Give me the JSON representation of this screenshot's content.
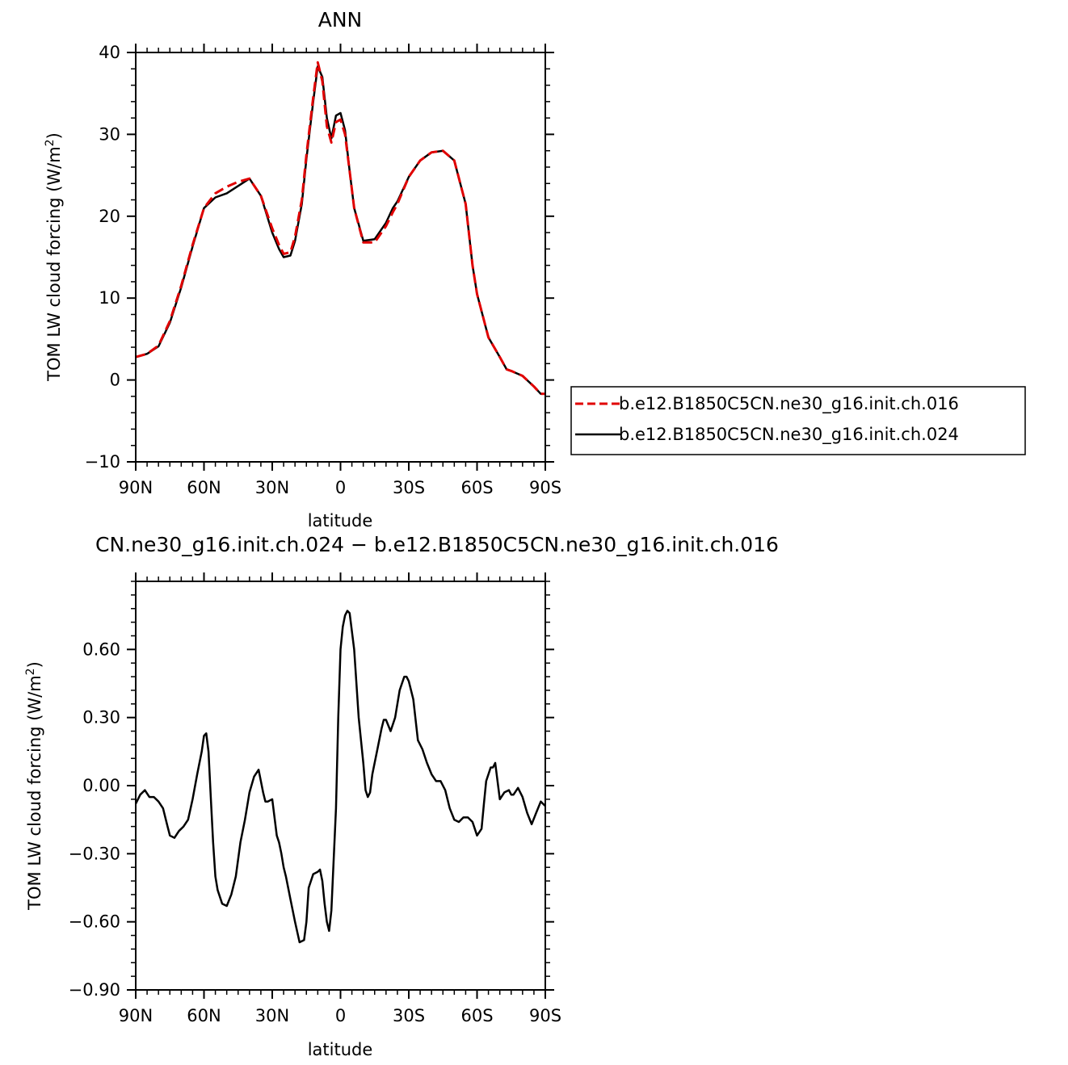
{
  "chart_data": [
    {
      "type": "line",
      "title": "ANN",
      "xlabel": "latitude",
      "ylabel": "TOM LW cloud forcing (W/m",
      "ylabel_sup": "2",
      "ylabel_close": ")",
      "xlim": [
        90,
        -90
      ],
      "ylim": [
        -10,
        40
      ],
      "xticks": [
        {
          "value": 90,
          "label": "90N"
        },
        {
          "value": 60,
          "label": "60N"
        },
        {
          "value": 30,
          "label": "30N"
        },
        {
          "value": 0,
          "label": "0"
        },
        {
          "value": -30,
          "label": "30S"
        },
        {
          "value": -60,
          "label": "60S"
        },
        {
          "value": -90,
          "label": "90S"
        }
      ],
      "yticks": [
        {
          "value": -10,
          "label": "−10"
        },
        {
          "value": 0,
          "label": "0"
        },
        {
          "value": 10,
          "label": "10"
        },
        {
          "value": 20,
          "label": "20"
        },
        {
          "value": 30,
          "label": "30"
        },
        {
          "value": 40,
          "label": "40"
        }
      ],
      "legend": {
        "placement": "right",
        "entries": [
          {
            "label": "b.e12.B1850C5CN.ne30_g16.init.ch.016",
            "color": "#e00000",
            "style": "dashed"
          },
          {
            "label": "b.e12.B1850C5CN.ne30_g16.init.ch.024",
            "color": "#000000",
            "style": "solid"
          }
        ]
      },
      "series": [
        {
          "name": "b.e12.B1850C5CN.ne30_g16.init.ch.016",
          "color": "#e00000",
          "style": "dashed",
          "x": [
            90,
            85,
            80,
            75,
            70,
            65,
            60,
            55,
            50,
            45,
            40,
            35,
            30,
            27,
            25,
            22,
            20,
            17,
            15,
            12,
            10,
            8,
            6,
            4,
            2,
            0,
            -2,
            -4,
            -6,
            -10,
            -15,
            -20,
            -23,
            -25,
            -30,
            -35,
            -40,
            -45,
            -50,
            -55,
            -58,
            -60,
            -65,
            -70,
            -73,
            -75,
            -80,
            -85,
            -88,
            -90
          ],
          "y": [
            2.8,
            3.2,
            4.2,
            7.2,
            11.5,
            16.5,
            21.0,
            22.8,
            23.6,
            24.2,
            24.6,
            22.5,
            18.5,
            16.5,
            15.4,
            15.6,
            17.5,
            22.0,
            27.5,
            34.5,
            38.8,
            36.5,
            31.0,
            29.0,
            31.5,
            31.8,
            30.0,
            25.5,
            21.0,
            16.8,
            16.8,
            18.8,
            20.5,
            21.5,
            24.8,
            26.8,
            27.8,
            28.0,
            26.8,
            21.5,
            14.0,
            10.5,
            5.2,
            2.8,
            1.3,
            1.1,
            0.5,
            -0.8,
            -1.7,
            -1.7
          ]
        },
        {
          "name": "b.e12.B1850C5CN.ne30_g16.init.ch.024",
          "color": "#000000",
          "style": "solid",
          "x": [
            90,
            85,
            80,
            75,
            70,
            65,
            60,
            55,
            50,
            45,
            40,
            35,
            30,
            27,
            25,
            22,
            20,
            17,
            15,
            12,
            10,
            8,
            6,
            4,
            2,
            0,
            -2,
            -4,
            -6,
            -10,
            -15,
            -20,
            -23,
            -25,
            -30,
            -35,
            -40,
            -45,
            -50,
            -55,
            -58,
            -60,
            -65,
            -70,
            -73,
            -75,
            -80,
            -85,
            -88,
            -90
          ],
          "y": [
            2.8,
            3.2,
            4.1,
            7.0,
            11.3,
            16.3,
            21.0,
            22.3,
            22.8,
            23.7,
            24.6,
            22.5,
            18.0,
            16.0,
            15.0,
            15.2,
            17.0,
            21.5,
            27.0,
            34.0,
            38.3,
            37.0,
            32.0,
            29.5,
            32.3,
            32.6,
            30.5,
            25.5,
            21.0,
            17.0,
            17.2,
            19.2,
            21.0,
            21.8,
            24.8,
            26.8,
            27.8,
            28.0,
            26.8,
            21.5,
            14.0,
            10.5,
            5.2,
            2.8,
            1.3,
            1.1,
            0.5,
            -0.8,
            -1.7,
            -1.7
          ]
        }
      ]
    },
    {
      "type": "line",
      "title": "CN.ne30_g16.init.ch.024 − b.e12.B1850C5CN.ne30_g16.init.ch.016",
      "xlabel": "latitude",
      "ylabel": "TOM LW cloud forcing (W/m",
      "ylabel_sup": "2",
      "ylabel_close": ")",
      "xlim": [
        90,
        -90
      ],
      "ylim": [
        -0.9,
        0.9
      ],
      "xticks": [
        {
          "value": 90,
          "label": "90N"
        },
        {
          "value": 60,
          "label": "60N"
        },
        {
          "value": 30,
          "label": "30N"
        },
        {
          "value": 0,
          "label": "0"
        },
        {
          "value": -30,
          "label": "30S"
        },
        {
          "value": -60,
          "label": "60S"
        },
        {
          "value": -90,
          "label": "90S"
        }
      ],
      "yticks": [
        {
          "value": -0.9,
          "label": "−0.90"
        },
        {
          "value": -0.6,
          "label": "−0.60"
        },
        {
          "value": -0.3,
          "label": "−0.30"
        },
        {
          "value": 0,
          "label": "0.00"
        },
        {
          "value": 0.3,
          "label": "0.30"
        },
        {
          "value": 0.6,
          "label": "0.60"
        }
      ],
      "series": [
        {
          "color": "#000000",
          "style": "solid",
          "x": [
            90,
            88,
            86,
            84,
            82,
            80,
            78,
            76,
            75,
            73,
            71,
            69,
            67,
            65,
            63,
            61,
            60,
            59,
            58,
            57,
            56,
            55,
            54,
            52,
            50,
            48,
            46,
            44,
            42,
            40,
            38,
            36,
            34,
            33,
            32,
            30,
            28,
            27,
            26,
            25,
            24,
            22,
            20,
            18,
            16,
            15,
            14,
            12,
            10,
            9,
            8,
            7,
            6,
            5,
            4,
            2,
            1,
            0,
            -1,
            -2,
            -3,
            -4,
            -6,
            -8,
            -10,
            -11,
            -12,
            -13,
            -14,
            -16,
            -18,
            -19,
            -20,
            -22,
            -24,
            -26,
            -28,
            -29,
            -30,
            -32,
            -34,
            -36,
            -38,
            -40,
            -42,
            -44,
            -46,
            -48,
            -50,
            -52,
            -54,
            -56,
            -58,
            -60,
            -62,
            -63,
            -64,
            -66,
            -67,
            -68,
            -70,
            -72,
            -74,
            -75,
            -76,
            -78,
            -80,
            -82,
            -84,
            -86,
            -88,
            -90
          ],
          "y": [
            -0.08,
            -0.04,
            -0.02,
            -0.05,
            -0.05,
            -0.07,
            -0.1,
            -0.18,
            -0.22,
            -0.23,
            -0.2,
            -0.18,
            -0.15,
            -0.06,
            0.05,
            0.15,
            0.22,
            0.23,
            0.15,
            -0.05,
            -0.25,
            -0.4,
            -0.46,
            -0.52,
            -0.53,
            -0.48,
            -0.4,
            -0.25,
            -0.15,
            -0.03,
            0.04,
            0.07,
            -0.03,
            -0.07,
            -0.07,
            -0.06,
            -0.22,
            -0.25,
            -0.3,
            -0.36,
            -0.4,
            -0.5,
            -0.6,
            -0.69,
            -0.68,
            -0.6,
            -0.45,
            -0.39,
            -0.38,
            -0.37,
            -0.42,
            -0.52,
            -0.6,
            -0.64,
            -0.55,
            -0.1,
            0.3,
            0.6,
            0.7,
            0.75,
            0.77,
            0.76,
            0.6,
            0.3,
            0.1,
            -0.02,
            -0.05,
            -0.03,
            0.05,
            0.15,
            0.25,
            0.29,
            0.29,
            0.24,
            0.3,
            0.42,
            0.48,
            0.48,
            0.46,
            0.38,
            0.2,
            0.16,
            0.1,
            0.05,
            0.02,
            0.02,
            -0.02,
            -0.1,
            -0.15,
            -0.16,
            -0.14,
            -0.14,
            -0.16,
            -0.22,
            -0.19,
            -0.08,
            0.02,
            0.08,
            0.08,
            0.1,
            -0.06,
            -0.03,
            -0.02,
            -0.04,
            -0.04,
            -0.01,
            -0.05,
            -0.12,
            -0.17,
            -0.12,
            -0.07,
            -0.09
          ]
        }
      ]
    }
  ]
}
